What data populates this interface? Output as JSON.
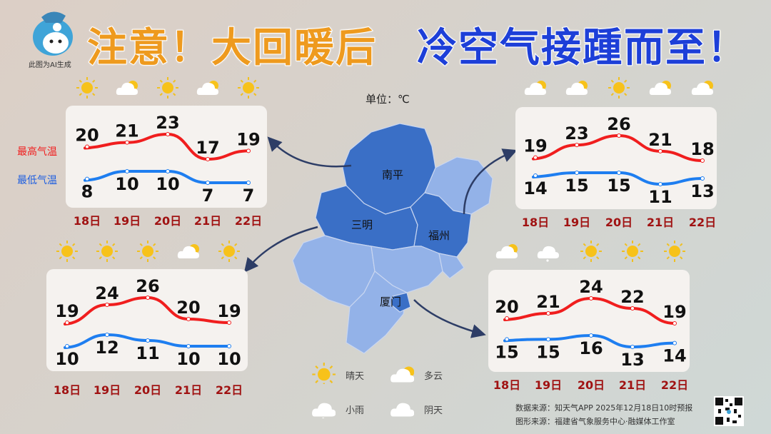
{
  "title": {
    "part1": "注意！大回暖后",
    "part2": "冷空气接踵而至！"
  },
  "mascot_caption": "此图为AI生成",
  "unit": "单位：℃",
  "legend_series": {
    "high": "最高气温",
    "low": "最低气温"
  },
  "colors": {
    "high": "#f01e1e",
    "low": "#1e7ef0",
    "title_orange": "#ee9a1e",
    "title_blue": "#1d3fd8",
    "date": "#a01212",
    "map_dark": "#3a6fc6",
    "map_light": "#93b2e8"
  },
  "map": {
    "cities": [
      "南平",
      "三明",
      "福州",
      "厦门"
    ]
  },
  "weather_legend": [
    {
      "icon": "sunny",
      "label": "晴天"
    },
    {
      "icon": "partly-cloudy",
      "label": "多云"
    },
    {
      "icon": "light-rain",
      "label": "小雨"
    },
    {
      "icon": "overcast",
      "label": "阴天"
    }
  ],
  "chart_data": [
    {
      "type": "line",
      "city": "南平",
      "categories": [
        "18日",
        "19日",
        "20日",
        "21日",
        "22日"
      ],
      "icons": [
        "sunny",
        "partly-cloudy",
        "sunny",
        "partly-cloudy",
        "sunny"
      ],
      "series": [
        {
          "name": "最高气温",
          "values": [
            20,
            21,
            23,
            17,
            19
          ]
        },
        {
          "name": "最低气温",
          "values": [
            8,
            10,
            10,
            7,
            7
          ]
        }
      ]
    },
    {
      "type": "line",
      "city": "福州",
      "categories": [
        "18日",
        "19日",
        "20日",
        "21日",
        "22日"
      ],
      "icons": [
        "partly-cloudy",
        "partly-cloudy",
        "sunny",
        "partly-cloudy",
        "partly-cloudy"
      ],
      "series": [
        {
          "name": "最高气温",
          "values": [
            19,
            23,
            26,
            21,
            18
          ]
        },
        {
          "name": "最低气温",
          "values": [
            14,
            15,
            15,
            11,
            13
          ]
        }
      ]
    },
    {
      "type": "line",
      "city": "三明",
      "categories": [
        "18日",
        "19日",
        "20日",
        "21日",
        "22日"
      ],
      "icons": [
        "sunny",
        "sunny",
        "sunny",
        "partly-cloudy",
        "sunny"
      ],
      "series": [
        {
          "name": "最高气温",
          "values": [
            19,
            24,
            26,
            20,
            19
          ]
        },
        {
          "name": "最低气温",
          "values": [
            10,
            12,
            11,
            10,
            10
          ]
        }
      ]
    },
    {
      "type": "line",
      "city": "厦门",
      "categories": [
        "18日",
        "19日",
        "20日",
        "21日",
        "22日"
      ],
      "icons": [
        "partly-cloudy",
        "light-rain",
        "sunny",
        "sunny",
        "sunny"
      ],
      "series": [
        {
          "name": "最高气温",
          "values": [
            20,
            21,
            24,
            22,
            19
          ]
        },
        {
          "name": "最低气温",
          "values": [
            15,
            15,
            16,
            13,
            14
          ]
        }
      ]
    }
  ],
  "source": {
    "data": "数据来源：知天气APP 2025年12月18日10时预报",
    "graphic": "图形来源：福建省气象服务中心·融媒体工作室"
  }
}
